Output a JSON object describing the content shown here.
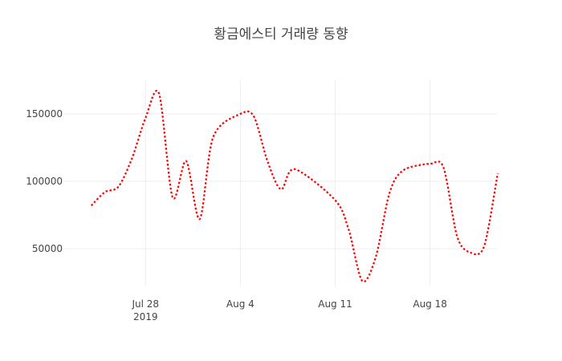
{
  "chart_data": {
    "type": "line",
    "title": "황금에스티 거래량 동향",
    "xlabel": "",
    "ylabel": "",
    "x_axis": {
      "type": "date",
      "range": [
        "2019-07-22",
        "2019-08-23"
      ],
      "ticks": [
        {
          "value": "2019-07-28",
          "label": "Jul 28",
          "sublabel": "2019"
        },
        {
          "value": "2019-08-04",
          "label": "Aug 4",
          "sublabel": ""
        },
        {
          "value": "2019-08-11",
          "label": "Aug 11",
          "sublabel": ""
        },
        {
          "value": "2019-08-18",
          "label": "Aug 18",
          "sublabel": ""
        }
      ]
    },
    "y_axis": {
      "range": [
        22000,
        175000
      ],
      "ticks": [
        50000,
        100000,
        150000
      ]
    },
    "grid": true,
    "legend": "none",
    "series": [
      {
        "line_style": "dotted",
        "color": "#ff0000",
        "x": [
          "2019-07-24",
          "2019-07-25",
          "2019-07-26",
          "2019-07-27",
          "2019-07-28",
          "2019-07-29",
          "2019-07-30",
          "2019-07-31",
          "2019-08-01",
          "2019-08-02",
          "2019-08-04",
          "2019-08-05",
          "2019-08-06",
          "2019-08-07",
          "2019-08-08",
          "2019-08-11",
          "2019-08-12",
          "2019-08-13",
          "2019-08-14",
          "2019-08-15",
          "2019-08-16",
          "2019-08-18",
          "2019-08-19",
          "2019-08-20",
          "2019-08-21",
          "2019-08-22",
          "2019-08-23"
        ],
        "y": [
          82000,
          92000,
          96000,
          117000,
          147000,
          165000,
          88000,
          115000,
          72000,
          133000,
          150000,
          148000,
          115000,
          94000,
          109000,
          86000,
          64000,
          26000,
          44000,
          91000,
          108000,
          113000,
          110000,
          59000,
          47000,
          52000,
          106000
        ]
      }
    ]
  }
}
